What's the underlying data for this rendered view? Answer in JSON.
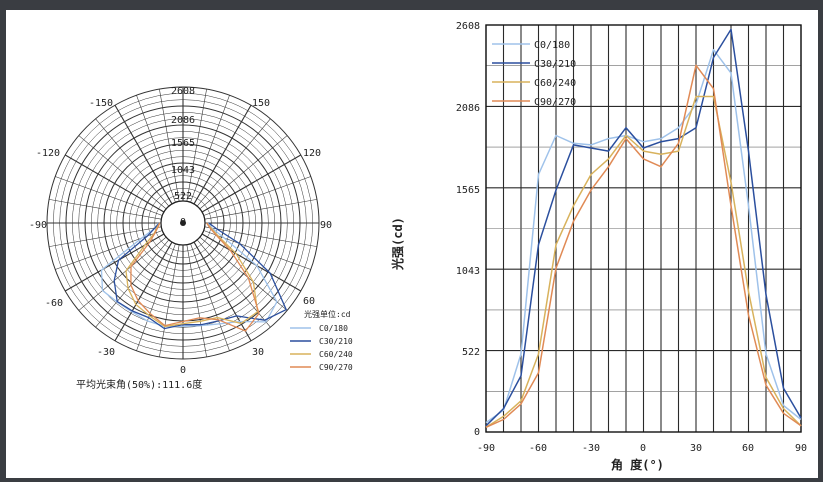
{
  "chart_data": [
    {
      "type": "polar",
      "radial_ticks": [
        "2608",
        "2086",
        "1565",
        "1043",
        "522",
        "0"
      ],
      "radial_values": [
        2608,
        2086,
        1565,
        1043,
        522,
        0
      ],
      "angle_ticks": [
        "-150",
        "150",
        "-120",
        "120",
        "-90",
        "90",
        "-60",
        "60",
        "-30",
        "30",
        "0"
      ],
      "legend_title": "光强单位:cd",
      "footer": "平均光束角(50%):111.6度",
      "series": [
        {
          "name": "C0/180",
          "color": "#9fc2ea",
          "angles": [
            -90,
            -80,
            -70,
            -60,
            -50,
            -40,
            -30,
            -20,
            -10,
            0,
            10,
            20,
            30,
            40,
            50,
            60,
            70,
            80,
            90
          ],
          "values": [
            60,
            140,
            500,
            1650,
            1900,
            1850,
            1840,
            1880,
            1900,
            1860,
            1880,
            1950,
            2100,
            2450,
            2300,
            1450,
            500,
            170,
            80
          ]
        },
        {
          "name": "C30/210",
          "color": "#2b4f9e",
          "angles": [
            -90,
            -80,
            -70,
            -60,
            -50,
            -40,
            -30,
            -20,
            -10,
            0,
            10,
            20,
            30,
            40,
            50,
            60,
            70,
            80,
            90
          ],
          "values": [
            40,
            150,
            360,
            1200,
            1550,
            1840,
            1820,
            1800,
            1950,
            1820,
            1860,
            1880,
            1950,
            2400,
            2580,
            1800,
            880,
            280,
            90
          ]
        },
        {
          "name": "C60/240",
          "color": "#d8b25c",
          "angles": [
            -90,
            -80,
            -70,
            -60,
            -50,
            -40,
            -30,
            -20,
            -10,
            0,
            10,
            20,
            30,
            40,
            50,
            60,
            70,
            80,
            90
          ],
          "values": [
            30,
            100,
            200,
            500,
            1200,
            1450,
            1650,
            1750,
            1900,
            1800,
            1780,
            1800,
            2150,
            2150,
            1600,
            900,
            350,
            150,
            40
          ]
        },
        {
          "name": "C90/270",
          "color": "#e08a55",
          "angles": [
            -90,
            -80,
            -70,
            -60,
            -50,
            -40,
            -30,
            -20,
            -10,
            0,
            10,
            20,
            30,
            40,
            50,
            60,
            70,
            80,
            90
          ],
          "values": [
            30,
            80,
            180,
            380,
            1050,
            1350,
            1550,
            1700,
            1880,
            1750,
            1700,
            1850,
            2350,
            2200,
            1450,
            750,
            300,
            120,
            40
          ]
        }
      ]
    },
    {
      "type": "line",
      "ylabel": "光强(cd)",
      "xlabel": "角 度(°)",
      "xlim": [
        -90,
        90
      ],
      "ylim": [
        0,
        2608
      ],
      "x_ticks": [
        -90,
        -60,
        -30,
        0,
        30,
        60,
        90
      ],
      "x_tick_labels": [
        "-90",
        "-60",
        "-30",
        "0",
        "30",
        "60",
        "90"
      ],
      "y_ticks": [
        0,
        522,
        1043,
        1565,
        2086,
        2608
      ],
      "y_tick_labels": [
        "0",
        "522",
        "1043",
        "1565",
        "2086",
        "2608"
      ],
      "grid": true,
      "legend": "top-left",
      "series_ref": "same as polar series"
    }
  ]
}
